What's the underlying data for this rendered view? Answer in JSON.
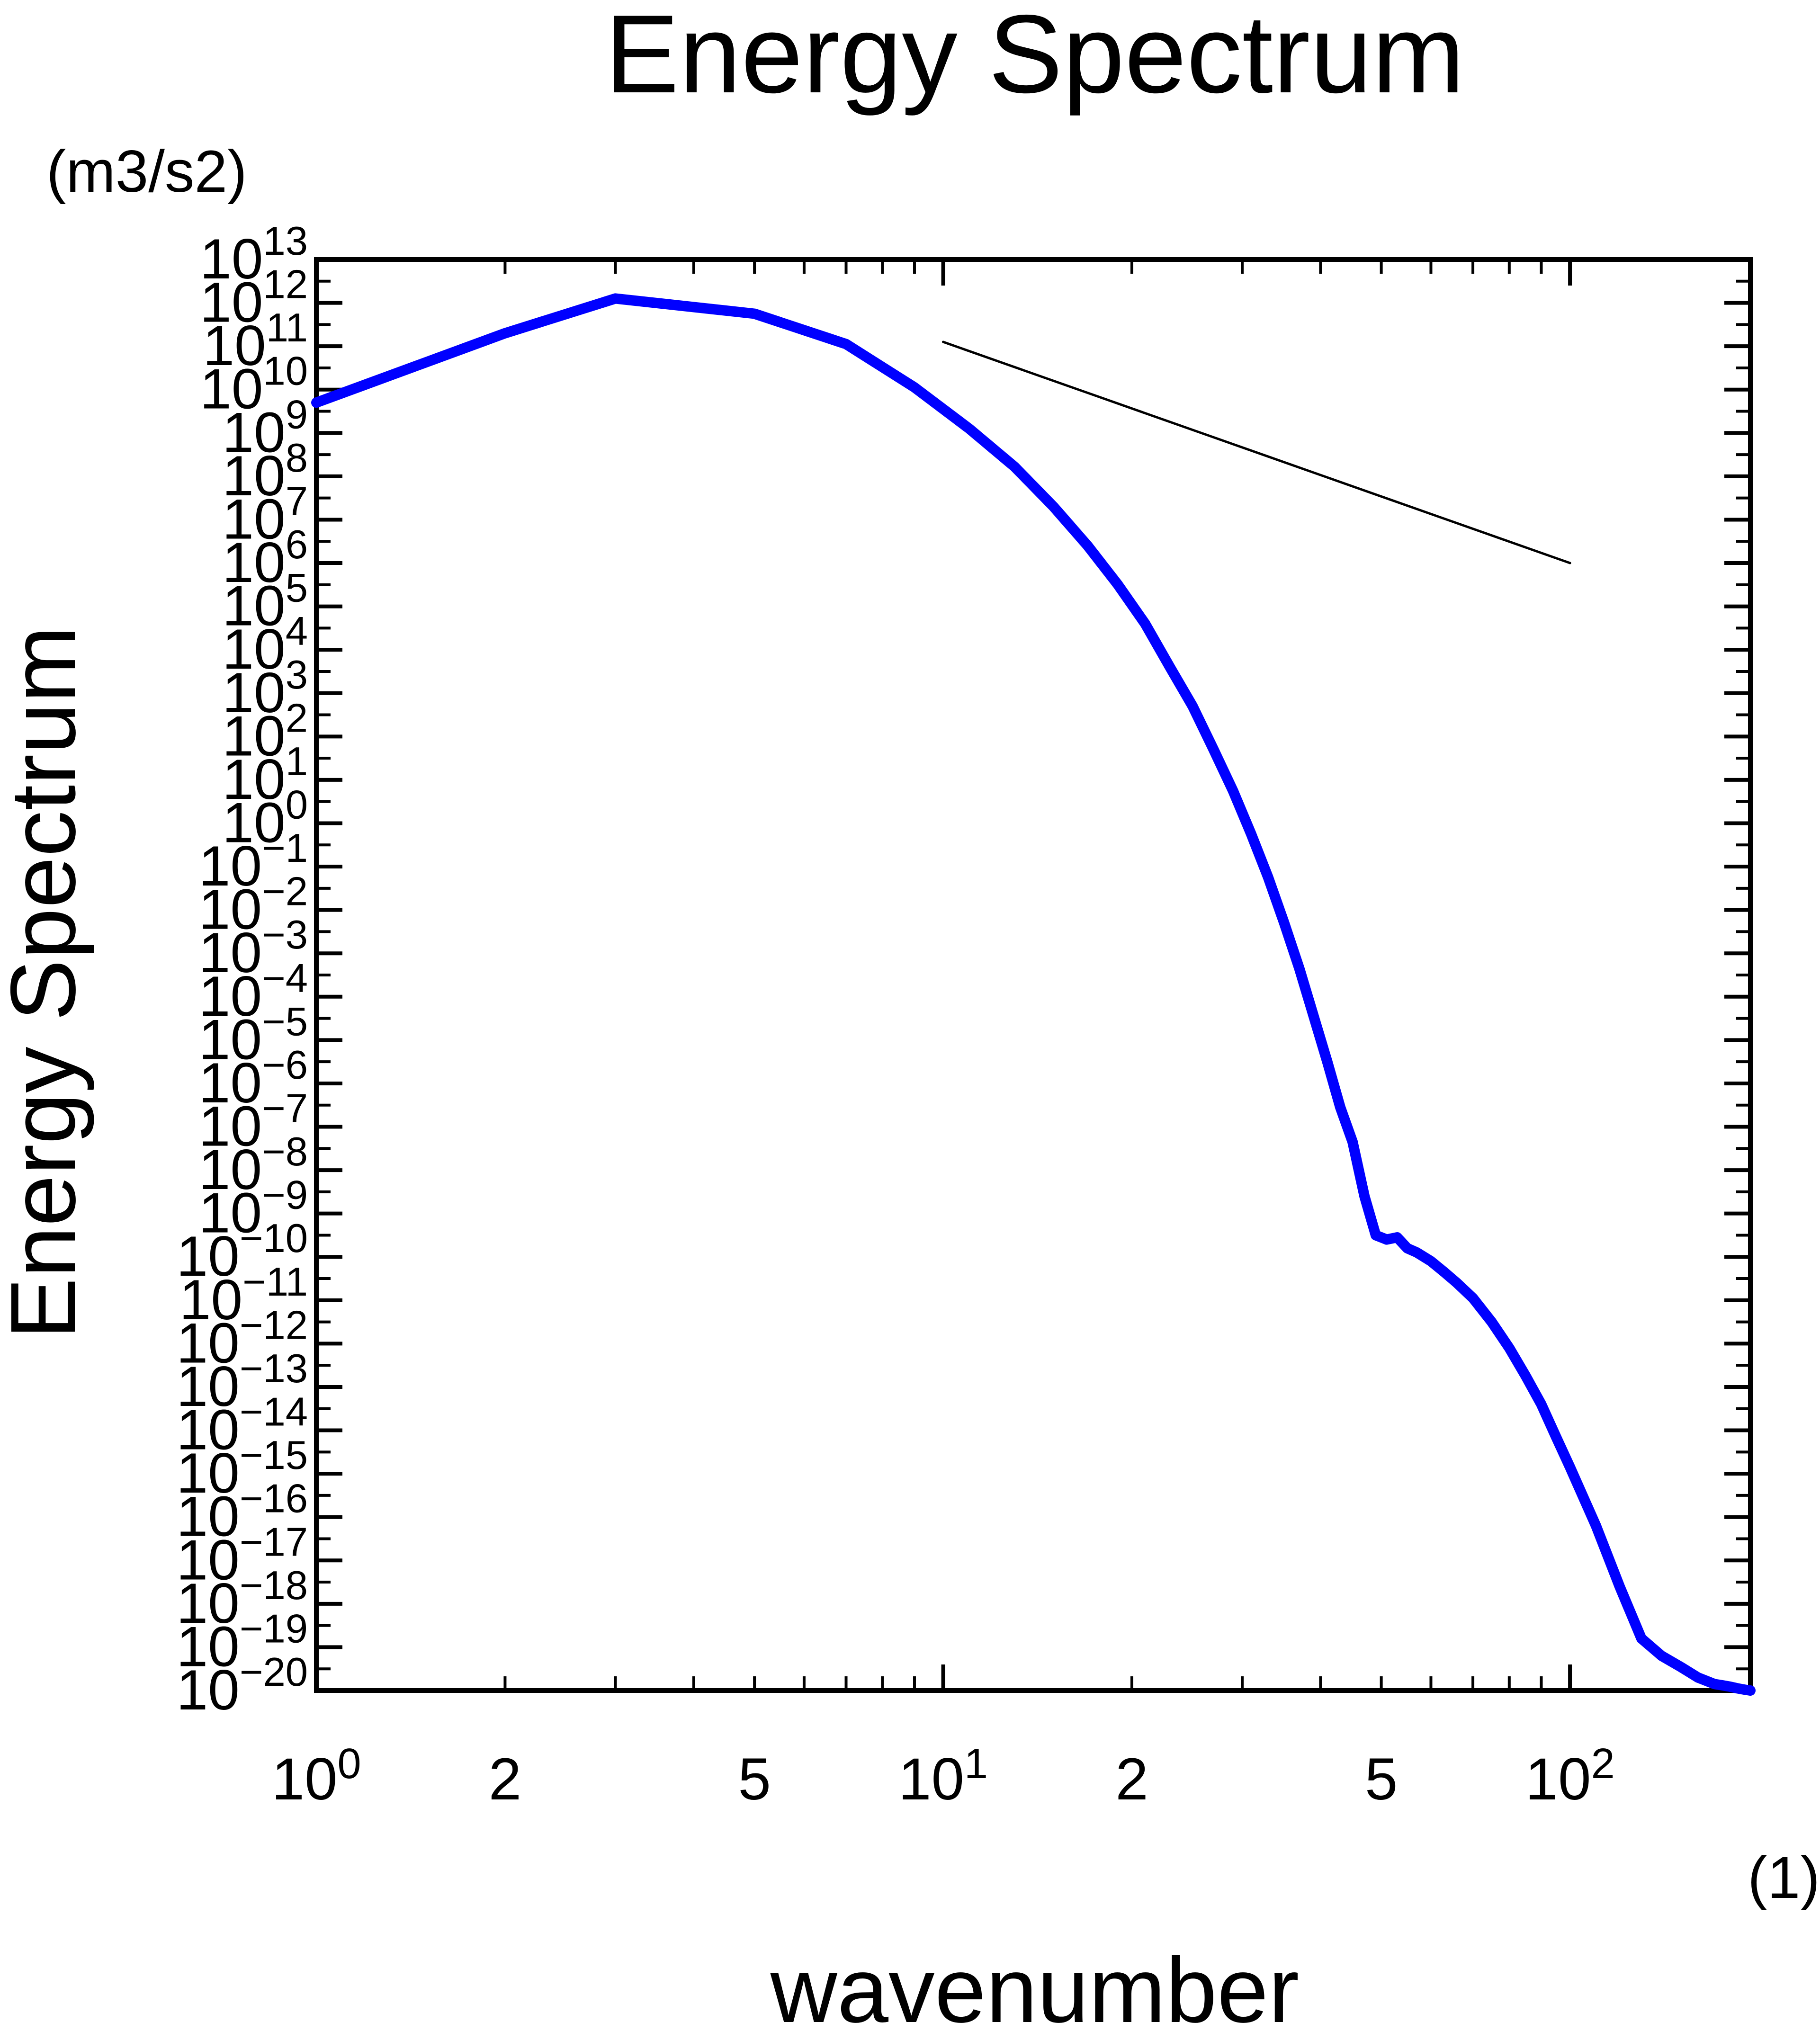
{
  "chart_data": {
    "type": "line",
    "title": "Energy Spectrum",
    "xlabel": "wavenumber",
    "ylabel": "Energy Spectrum",
    "x_units": "(1)",
    "y_units": "(m3/s2)",
    "x_scale": "log",
    "y_scale": "log",
    "xlim": [
      1,
      194
    ],
    "ylim": [
      1e-20,
      10000000000000.0
    ],
    "x_ticks": [
      {
        "base": "10",
        "exp": "0"
      },
      {
        "base": "2",
        "exp": ""
      },
      {
        "base": "5",
        "exp": ""
      },
      {
        "base": "10",
        "exp": "1"
      },
      {
        "base": "2",
        "exp": ""
      },
      {
        "base": "5",
        "exp": ""
      },
      {
        "base": "10",
        "exp": "2"
      }
    ],
    "x_tick_values": [
      1,
      2,
      5,
      10,
      20,
      50,
      100
    ],
    "y_ticks": [
      {
        "base": "10",
        "exp": "13"
      },
      {
        "base": "10",
        "exp": "12"
      },
      {
        "base": "10",
        "exp": "11"
      },
      {
        "base": "10",
        "exp": "10"
      },
      {
        "base": "10",
        "exp": "9"
      },
      {
        "base": "10",
        "exp": "8"
      },
      {
        "base": "10",
        "exp": "7"
      },
      {
        "base": "10",
        "exp": "6"
      },
      {
        "base": "10",
        "exp": "5"
      },
      {
        "base": "10",
        "exp": "4"
      },
      {
        "base": "10",
        "exp": "3"
      },
      {
        "base": "10",
        "exp": "2"
      },
      {
        "base": "10",
        "exp": "1"
      },
      {
        "base": "10",
        "exp": "0"
      },
      {
        "base": "10",
        "exp": "−1"
      },
      {
        "base": "10",
        "exp": "−2"
      },
      {
        "base": "10",
        "exp": "−3"
      },
      {
        "base": "10",
        "exp": "−4"
      },
      {
        "base": "10",
        "exp": "−5"
      },
      {
        "base": "10",
        "exp": "−6"
      },
      {
        "base": "10",
        "exp": "−7"
      },
      {
        "base": "10",
        "exp": "−8"
      },
      {
        "base": "10",
        "exp": "−9"
      },
      {
        "base": "10",
        "exp": "−10"
      },
      {
        "base": "10",
        "exp": "−11"
      },
      {
        "base": "10",
        "exp": "−12"
      },
      {
        "base": "10",
        "exp": "−13"
      },
      {
        "base": "10",
        "exp": "−14"
      },
      {
        "base": "10",
        "exp": "−15"
      },
      {
        "base": "10",
        "exp": "−16"
      },
      {
        "base": "10",
        "exp": "−17"
      },
      {
        "base": "10",
        "exp": "−18"
      },
      {
        "base": "10",
        "exp": "−19"
      },
      {
        "base": "10",
        "exp": "−20"
      }
    ],
    "y_tick_values": [
      13,
      12,
      11,
      10,
      9,
      8,
      7,
      6,
      5,
      4,
      3,
      2,
      1,
      0,
      -1,
      -2,
      -3,
      -4,
      -5,
      -6,
      -7,
      -8,
      -9,
      -10,
      -11,
      -12,
      -13,
      -14,
      -15,
      -16,
      -17,
      -18,
      -19,
      -20
    ],
    "grid": false,
    "series": [
      {
        "color": "#0000ff",
        "x": [
          1,
          2,
          3,
          5,
          7,
          9,
          11,
          13,
          15,
          17,
          19,
          21,
          23,
          25,
          27,
          29,
          31,
          33,
          35,
          37,
          39,
          41,
          43,
          45,
          47,
          49,
          51,
          53,
          55,
          57,
          60,
          63,
          66,
          70,
          75,
          80,
          85,
          90,
          95,
          100,
          110,
          120,
          130,
          140,
          150,
          160,
          170,
          175,
          180,
          185,
          190,
          194
        ],
        "log10_y": [
          9.7,
          11.3,
          12.1,
          11.75,
          11.05,
          10.05,
          9.1,
          8.22,
          7.3,
          6.4,
          5.5,
          4.6,
          3.6,
          2.7,
          1.7,
          0.75,
          -0.25,
          -1.25,
          -2.3,
          -3.35,
          -4.45,
          -5.5,
          -6.55,
          -7.35,
          -8.6,
          -9.5,
          -9.6,
          -9.55,
          -9.8,
          -9.9,
          -10.1,
          -10.35,
          -10.6,
          -10.95,
          -11.5,
          -12.1,
          -12.75,
          -13.4,
          -14.15,
          -14.85,
          -16.2,
          -17.6,
          -18.8,
          -19.2,
          -19.45,
          -19.7,
          -19.85,
          -19.88,
          -19.91,
          -19.95,
          -19.98,
          -20
        ]
      },
      {
        "color": "#000000",
        "x": [
          10,
          100
        ],
        "log10_y": [
          11.1,
          6.0
        ]
      }
    ]
  }
}
